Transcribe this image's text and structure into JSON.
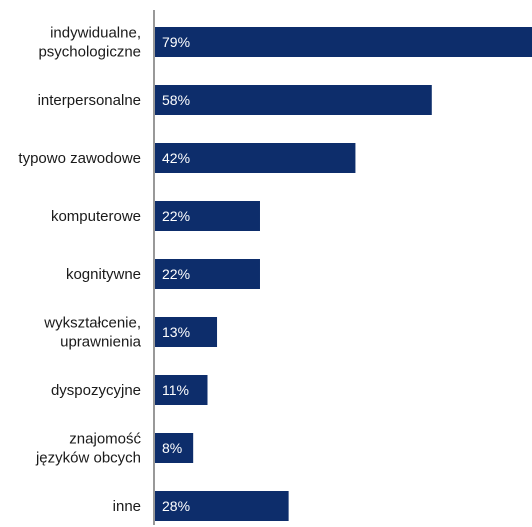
{
  "chart_data": {
    "type": "bar",
    "orientation": "horizontal",
    "categories": [
      "indywidualne,\npsychologiczne",
      "interpersonalne",
      "typowo zawodowe",
      "komputerowe",
      "kognitywne",
      "wykształcenie,\nuprawnienia",
      "dyspozycyjne",
      "znajomość\njęzyków obcych",
      "inne"
    ],
    "values": [
      79,
      58,
      42,
      22,
      22,
      13,
      11,
      8,
      28
    ],
    "value_labels": [
      "79%",
      "58%",
      "42%",
      "22%",
      "22%",
      "13%",
      "11%",
      "8%",
      "28%"
    ],
    "xlim": [
      0,
      79
    ],
    "grid": false,
    "bar_color": "#0d2d6b",
    "axis_color": "#555555"
  }
}
